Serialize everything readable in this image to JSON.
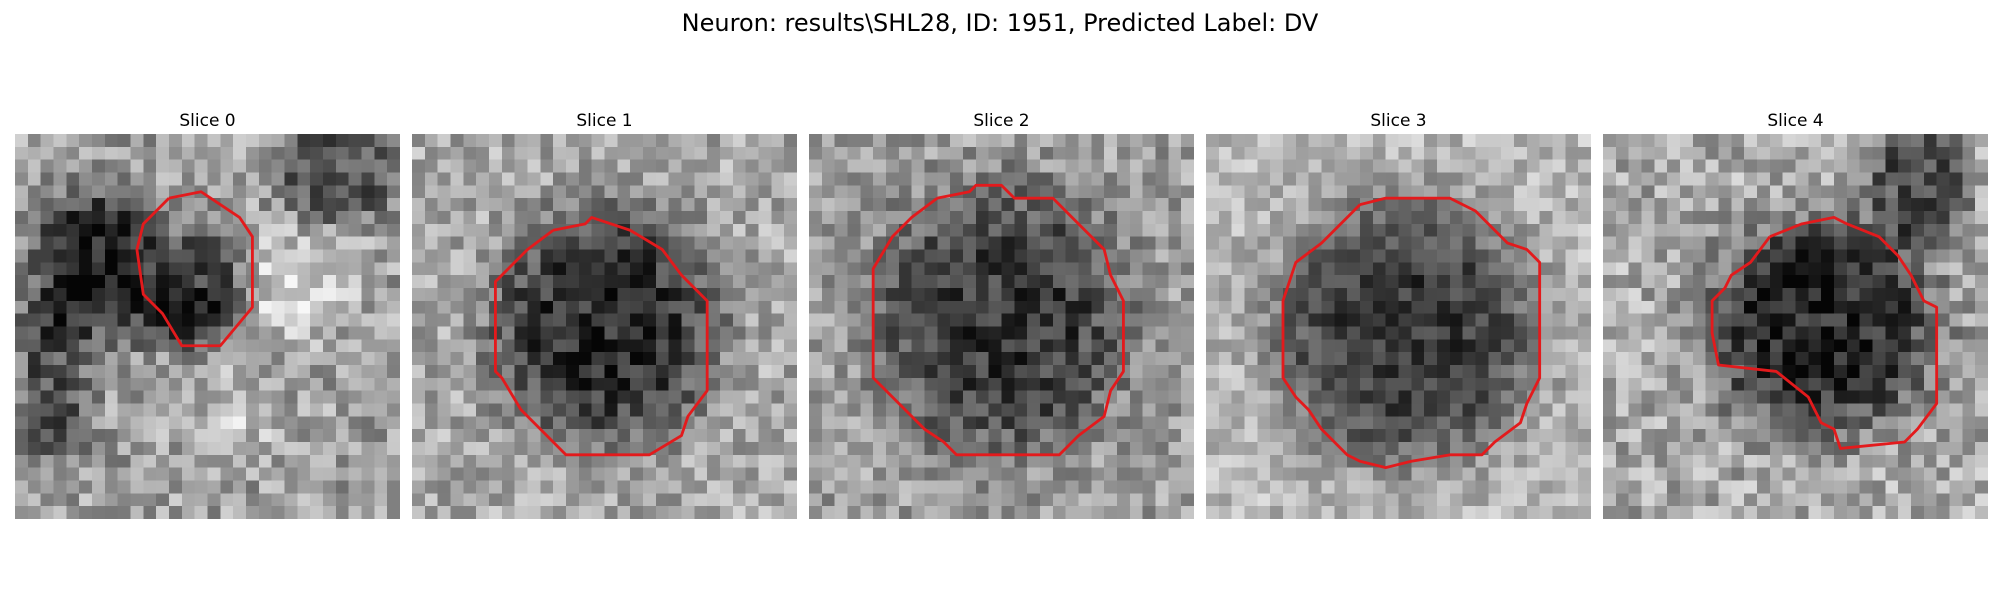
{
  "figure": {
    "title": "Neuron: results\\SHL28, ID: 1951, Predicted Label: DV",
    "outline_color": "#e31a1c",
    "colormap": "gray",
    "grid_size": 30
  },
  "panels": [
    {
      "title": "Slice 0",
      "background": {
        "mean": 0.62,
        "noise": 0.2
      },
      "dark_spots": [
        {
          "cx": 6,
          "cy": 9,
          "rx": 5,
          "ry": 5,
          "depth": 0.45
        },
        {
          "cx": 14,
          "cy": 12,
          "rx": 4,
          "ry": 5,
          "depth": 0.35
        },
        {
          "cx": 25,
          "cy": 3,
          "rx": 5,
          "ry": 4,
          "depth": 0.3
        },
        {
          "cx": 3,
          "cy": 20,
          "rx": 3,
          "ry": 6,
          "depth": 0.3
        },
        {
          "cx": 8,
          "cy": 14,
          "rx": 8,
          "ry": 3,
          "depth": 0.25
        }
      ],
      "bright_spots": [
        {
          "cx": 22,
          "cy": 12,
          "rx": 4,
          "ry": 4,
          "boost": 0.25
        },
        {
          "cx": 17,
          "cy": 22,
          "rx": 4,
          "ry": 3,
          "boost": 0.15
        }
      ],
      "outline": [
        [
          12,
          5
        ],
        [
          14.5,
          4.5
        ],
        [
          16,
          5.5
        ],
        [
          17.5,
          6.5
        ],
        [
          18.5,
          8
        ],
        [
          18.5,
          13.5
        ],
        [
          16,
          16.5
        ],
        [
          13,
          16.5
        ],
        [
          11.5,
          14
        ],
        [
          10,
          12.5
        ],
        [
          9.5,
          9
        ],
        [
          10,
          7
        ],
        [
          12,
          5
        ]
      ]
    },
    {
      "title": "Slice 1",
      "background": {
        "mean": 0.66,
        "noise": 0.18
      },
      "dark_spots": [
        {
          "cx": 15,
          "cy": 15,
          "rx": 9,
          "ry": 9.5,
          "depth": 0.48
        }
      ],
      "bright_spots": [],
      "outline": [
        [
          11,
          7.5
        ],
        [
          13.5,
          7
        ],
        [
          14,
          6.5
        ],
        [
          17,
          7.5
        ],
        [
          19.5,
          9
        ],
        [
          21,
          11
        ],
        [
          23,
          13
        ],
        [
          23,
          20
        ],
        [
          21.5,
          22
        ],
        [
          21,
          23.5
        ],
        [
          18.5,
          25
        ],
        [
          17.5,
          25
        ],
        [
          12,
          25
        ],
        [
          10,
          23
        ],
        [
          8.5,
          21.5
        ],
        [
          7,
          19
        ],
        [
          6.5,
          18.5
        ],
        [
          6.5,
          11.5
        ],
        [
          9,
          9
        ],
        [
          11,
          7.5
        ]
      ]
    },
    {
      "title": "Slice 2",
      "background": {
        "mean": 0.62,
        "noise": 0.18
      },
      "dark_spots": [
        {
          "cx": 15,
          "cy": 14.5,
          "rx": 10,
          "ry": 10.5,
          "depth": 0.4
        }
      ],
      "bright_spots": [],
      "outline": [
        [
          10,
          5
        ],
        [
          12.5,
          4.5
        ],
        [
          13,
          4
        ],
        [
          15,
          4
        ],
        [
          16,
          5
        ],
        [
          19,
          5
        ],
        [
          21,
          7
        ],
        [
          23,
          9
        ],
        [
          23.5,
          11
        ],
        [
          24.5,
          13
        ],
        [
          24.5,
          18.5
        ],
        [
          23.5,
          20
        ],
        [
          23,
          22
        ],
        [
          21,
          23.5
        ],
        [
          19.5,
          25
        ],
        [
          18.5,
          25
        ],
        [
          11.5,
          25
        ],
        [
          10.5,
          24
        ],
        [
          9,
          23
        ],
        [
          7.5,
          21.5
        ],
        [
          5,
          19
        ],
        [
          5,
          10.5
        ],
        [
          6.5,
          8
        ],
        [
          8,
          6.5
        ],
        [
          10,
          5
        ]
      ]
    },
    {
      "title": "Slice 3",
      "background": {
        "mean": 0.72,
        "noise": 0.15
      },
      "dark_spots": [
        {
          "cx": 15.5,
          "cy": 15.5,
          "rx": 10.5,
          "ry": 10.5,
          "depth": 0.5
        }
      ],
      "bright_spots": [],
      "outline": [
        [
          12,
          5.5
        ],
        [
          14,
          5
        ],
        [
          19,
          5
        ],
        [
          21,
          6
        ],
        [
          23.5,
          8.5
        ],
        [
          25,
          9
        ],
        [
          26,
          10
        ],
        [
          26,
          19
        ],
        [
          25,
          21
        ],
        [
          24.5,
          22.5
        ],
        [
          22.5,
          24
        ],
        [
          21.5,
          25
        ],
        [
          19,
          25
        ],
        [
          16,
          25.5
        ],
        [
          14,
          26
        ],
        [
          12,
          25.5
        ],
        [
          11,
          25
        ],
        [
          9,
          23
        ],
        [
          8,
          21.5
        ],
        [
          7,
          20.5
        ],
        [
          6,
          19
        ],
        [
          6,
          13
        ],
        [
          7,
          10
        ],
        [
          9,
          8.5
        ],
        [
          10.5,
          7
        ],
        [
          12,
          5.5
        ]
      ]
    },
    {
      "title": "Slice 4",
      "background": {
        "mean": 0.66,
        "noise": 0.2
      },
      "dark_spots": [
        {
          "cx": 17,
          "cy": 15,
          "rx": 9,
          "ry": 8.5,
          "depth": 0.52
        },
        {
          "cx": 24.5,
          "cy": 4,
          "rx": 4,
          "ry": 5,
          "depth": 0.35
        }
      ],
      "bright_spots": [],
      "outline": [
        [
          13,
          8
        ],
        [
          15.5,
          7
        ],
        [
          18,
          6.5
        ],
        [
          19,
          7
        ],
        [
          21.5,
          8
        ],
        [
          23,
          9.5
        ],
        [
          24,
          11
        ],
        [
          25,
          13
        ],
        [
          26,
          13.5
        ],
        [
          26,
          21
        ],
        [
          24.5,
          23
        ],
        [
          23.5,
          24
        ],
        [
          18.5,
          24.5
        ],
        [
          18,
          23
        ],
        [
          17,
          22.5
        ],
        [
          16,
          20.5
        ],
        [
          13.5,
          18.5
        ],
        [
          9,
          18
        ],
        [
          8.5,
          15.5
        ],
        [
          8.5,
          13
        ],
        [
          9.5,
          12
        ],
        [
          10,
          11
        ],
        [
          11.5,
          10
        ],
        [
          13,
          8
        ]
      ]
    }
  ]
}
